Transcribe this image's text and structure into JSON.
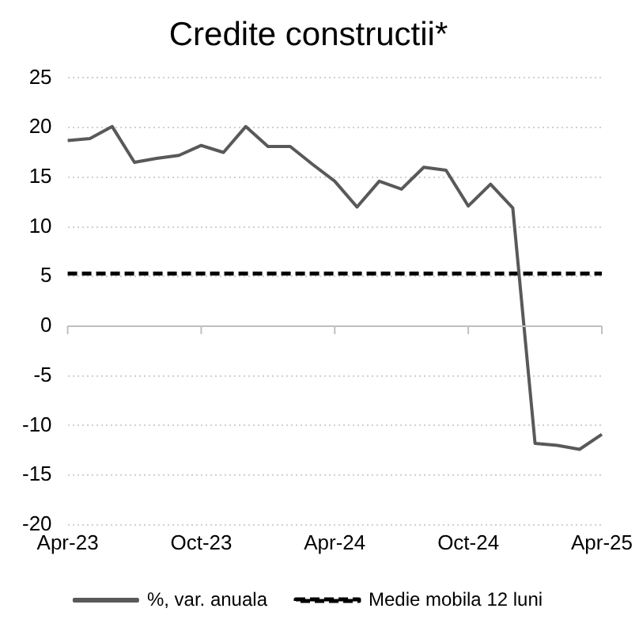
{
  "chart_data": {
    "type": "line",
    "title": "Credite constructii*",
    "categories": [
      "Apr-23",
      null,
      null,
      null,
      null,
      null,
      "Oct-23",
      null,
      null,
      null,
      null,
      null,
      "Apr-24",
      null,
      null,
      null,
      null,
      null,
      "Oct-24",
      null,
      null,
      null,
      null,
      null,
      "Apr-25"
    ],
    "series": [
      {
        "name": "%, var. anuala",
        "color": "#595959",
        "line_style": "solid",
        "values": [
          18.7,
          18.9,
          20.1,
          16.5,
          16.9,
          17.2,
          18.2,
          17.5,
          20.1,
          18.1,
          18.1,
          16.3,
          14.6,
          12.0,
          14.6,
          13.8,
          16.0,
          15.7,
          12.1,
          14.3,
          11.9,
          -11.8,
          -12.0,
          -12.4,
          -10.9
        ]
      },
      {
        "name": "Medie mobila 12 luni",
        "color": "#000000",
        "line_style": "dashed",
        "values": [
          5.3,
          5.3,
          5.3,
          5.3,
          5.3,
          5.3,
          5.3,
          5.3,
          5.3,
          5.3,
          5.3,
          5.3,
          5.3,
          5.3,
          5.3,
          5.3,
          5.3,
          5.3,
          5.3,
          5.3,
          5.3,
          5.3,
          5.3,
          5.3,
          5.3
        ]
      }
    ],
    "ylim": [
      -20,
      25
    ],
    "yticks": [
      -20,
      -15,
      -10,
      -5,
      0,
      5,
      10,
      15,
      20,
      25
    ],
    "grid": "y",
    "legend": "bottom",
    "marker": "none"
  }
}
